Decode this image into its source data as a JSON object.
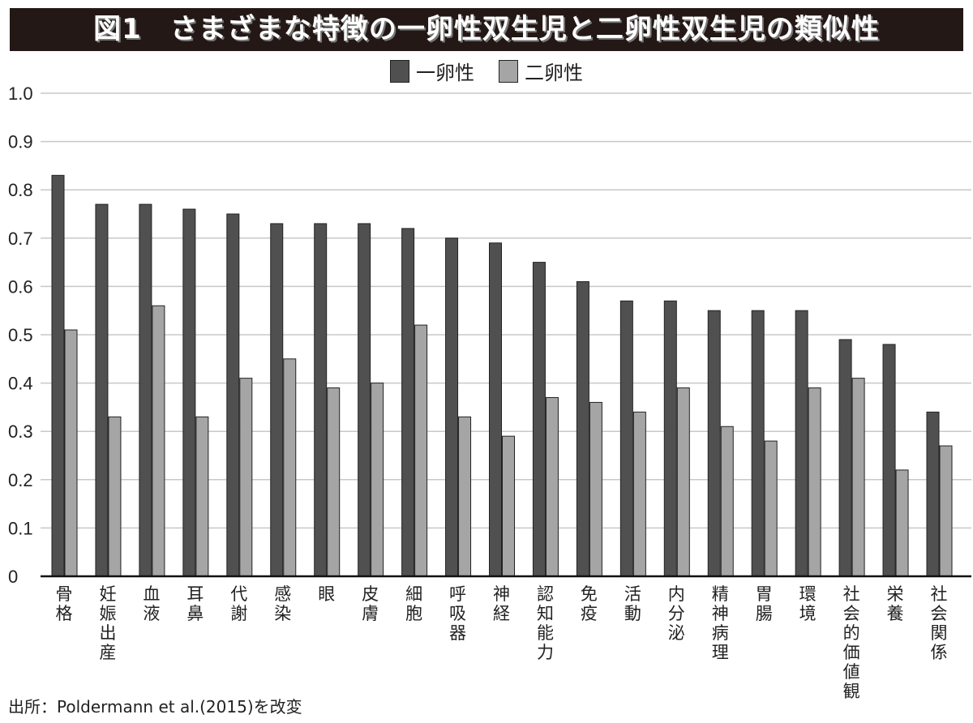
{
  "title": "図1　さまざまな特徴の一卵性双生児と二卵性双生児の類似性",
  "source": "出所：Poldermann et al.(2015)を改変",
  "colors": {
    "title_bg": "#231815",
    "series_1": "#505050",
    "series_2": "#a5a5a5",
    "grid": "#c8c8c8"
  },
  "chart_data": {
    "type": "bar",
    "title": "図1　さまざまな特徴の一卵性双生児と二卵性双生児の類似性",
    "xlabel": "",
    "ylabel": "",
    "ylim": [
      0,
      1.0
    ],
    "yticks": [
      "0",
      "0.1",
      "0.2",
      "0.3",
      "0.4",
      "0.5",
      "0.6",
      "0.7",
      "0.8",
      "0.9",
      "1.0"
    ],
    "grid": true,
    "legend": "top-center",
    "categories": [
      "骨格",
      "妊娠出産",
      "血液",
      "耳鼻",
      "代謝",
      "感染",
      "眼",
      "皮膚",
      "細胞",
      "呼吸器",
      "神経",
      "認知能力",
      "免疫",
      "活動",
      "内分泌",
      "精神病理",
      "胃腸",
      "環境",
      "社会的価値観",
      "栄養",
      "社会関係"
    ],
    "series": [
      {
        "name": "一卵性",
        "color": "#505050",
        "values": [
          0.83,
          0.77,
          0.77,
          0.76,
          0.75,
          0.73,
          0.73,
          0.73,
          0.72,
          0.7,
          0.69,
          0.65,
          0.61,
          0.57,
          0.57,
          0.55,
          0.55,
          0.55,
          0.49,
          0.48,
          0.34
        ]
      },
      {
        "name": "二卵性",
        "color": "#a5a5a5",
        "values": [
          0.51,
          0.33,
          0.56,
          0.33,
          0.41,
          0.45,
          0.39,
          0.4,
          0.52,
          0.33,
          0.29,
          0.37,
          0.36,
          0.34,
          0.39,
          0.31,
          0.28,
          0.39,
          0.41,
          0.22,
          0.27
        ]
      }
    ]
  }
}
